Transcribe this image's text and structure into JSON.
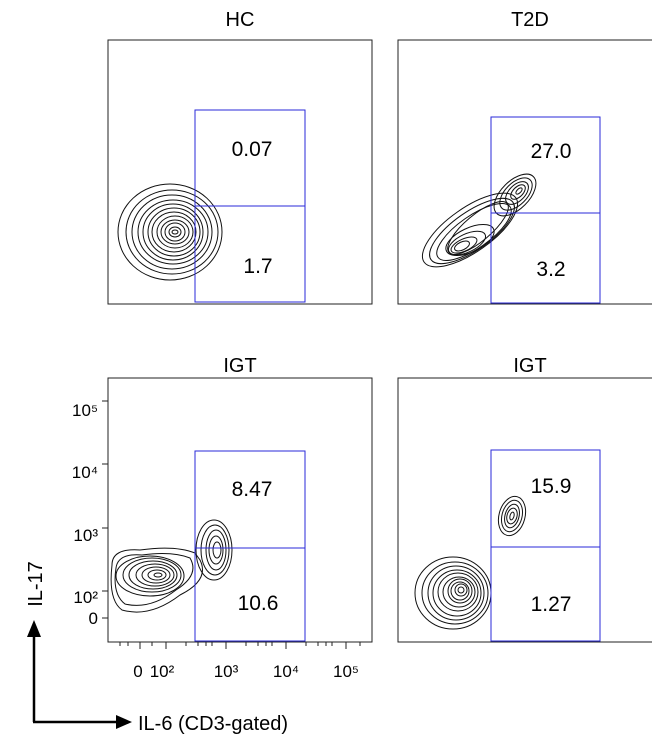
{
  "chart_data": [
    {
      "type": "scatter",
      "title": "HC",
      "gates": [
        {
          "region": "upper",
          "value": "0.07"
        },
        {
          "region": "lower",
          "value": "1.7"
        }
      ]
    },
    {
      "type": "scatter",
      "title": "T2D",
      "gates": [
        {
          "region": "upper",
          "value": "27.0"
        },
        {
          "region": "lower",
          "value": "3.2"
        }
      ]
    },
    {
      "type": "scatter",
      "title": "IGT",
      "gates": [
        {
          "region": "upper",
          "value": "8.47"
        },
        {
          "region": "lower",
          "value": "10.6"
        }
      ],
      "x_ticks": [
        "0",
        "10²",
        "10³",
        "10⁴",
        "10⁵"
      ],
      "y_ticks": [
        "0",
        "10²",
        "10³",
        "10⁴",
        "10⁵"
      ]
    },
    {
      "type": "scatter",
      "title": "IGT",
      "gates": [
        {
          "region": "upper",
          "value": "15.9"
        },
        {
          "region": "lower",
          "value": "1.27"
        }
      ]
    }
  ],
  "ylabel": "IL-17",
  "xlabel": "IL-6 (CD3-gated)",
  "colors": {
    "gate": "#2a2ad8",
    "contour": "#111111",
    "frame": "#222222"
  }
}
